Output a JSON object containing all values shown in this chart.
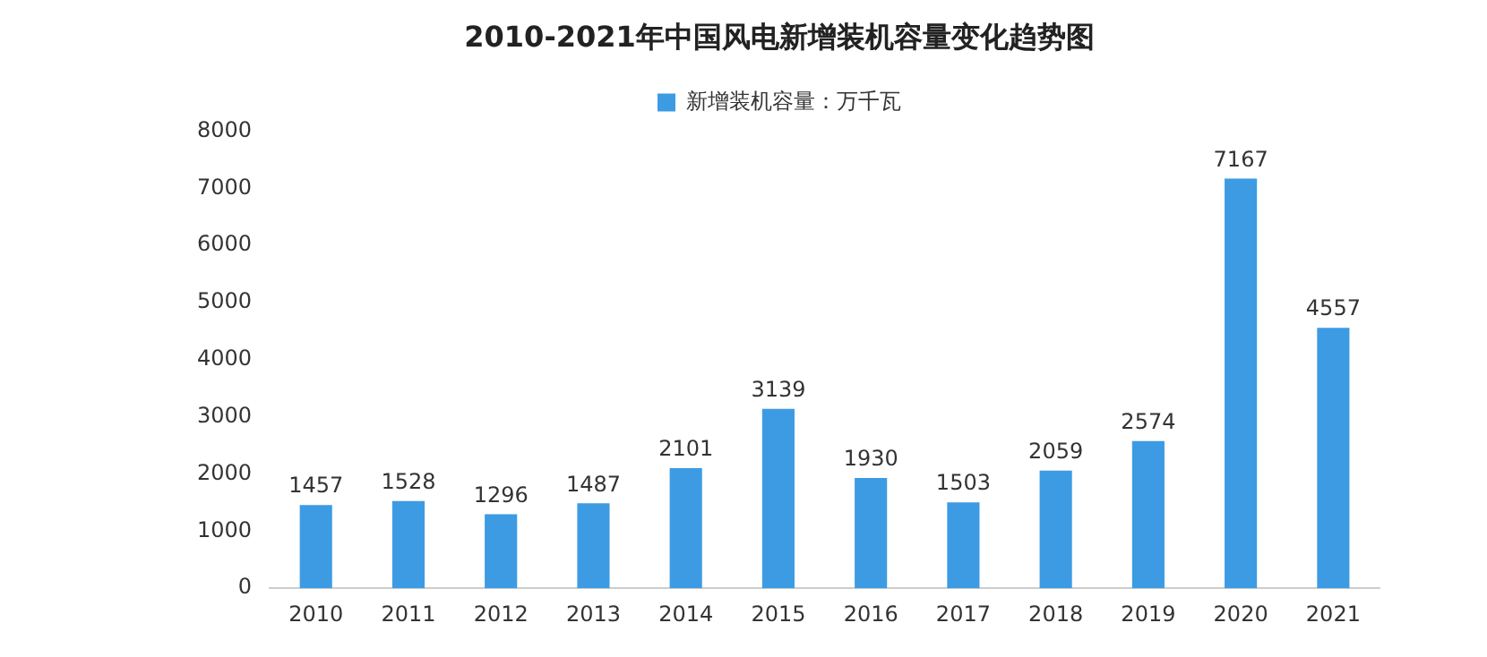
{
  "chart_data": {
    "type": "bar",
    "title": "2010-2021年中国风电新增装机容量变化趋势图",
    "categories": [
      "2010",
      "2011",
      "2012",
      "2013",
      "2014",
      "2015",
      "2016",
      "2017",
      "2018",
      "2019",
      "2020",
      "2021"
    ],
    "series": [
      {
        "name": "新增装机容量：万千瓦",
        "color": "#3d9be3",
        "values": [
          1457,
          1528,
          1296,
          1487,
          2101,
          3139,
          1930,
          1503,
          2059,
          2574,
          7167,
          4557
        ]
      }
    ],
    "ylim": [
      0,
      8000
    ],
    "yticks": [
      0,
      1000,
      2000,
      3000,
      4000,
      5000,
      6000,
      7000,
      8000
    ],
    "grid": false,
    "legend": "top",
    "data_labels": true
  }
}
